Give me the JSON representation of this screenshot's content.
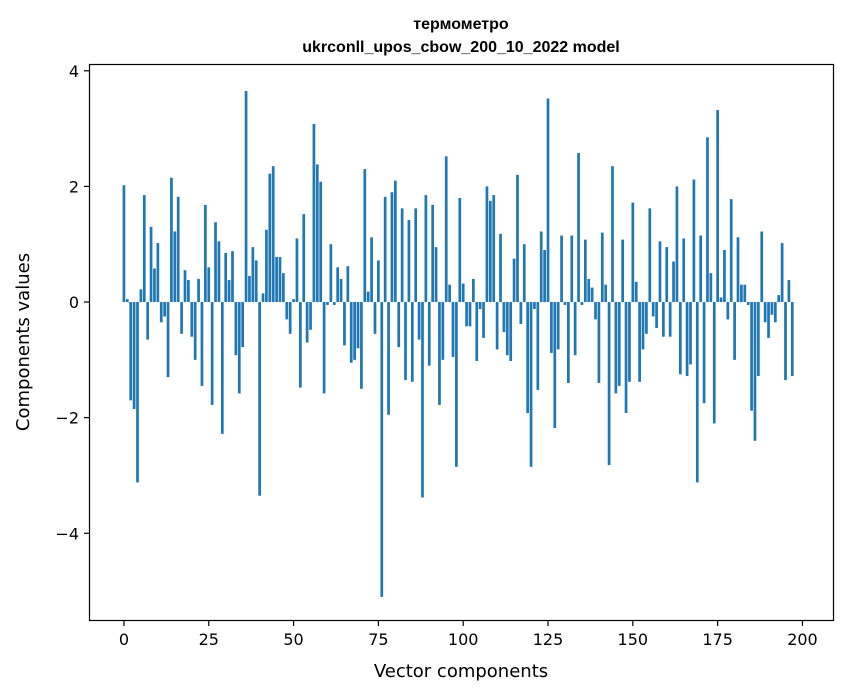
{
  "chart_data": {
    "type": "bar",
    "title": "термометро",
    "subtitle": "ukrconll_upos_cbow_200_10_2022 model",
    "xlabel": "Vector components",
    "ylabel": "Components values",
    "xlim": [
      -10,
      209
    ],
    "ylim": [
      -5.5,
      4.1
    ],
    "xticks": [
      0,
      25,
      50,
      75,
      100,
      125,
      150,
      175,
      200
    ],
    "yticks": [
      -4,
      -2,
      0,
      2,
      4
    ],
    "ytick_labels": [
      "−4",
      "−2",
      "0",
      "2",
      "4"
    ],
    "grid": false,
    "bar_color": "#1f77b4",
    "values": [
      2.02,
      0.05,
      -1.7,
      -1.85,
      -3.12,
      0.22,
      1.85,
      -0.65,
      1.3,
      0.58,
      1.02,
      -0.35,
      -0.25,
      -1.3,
      2.15,
      1.22,
      1.82,
      -0.55,
      0.55,
      0.38,
      -0.6,
      -1.0,
      0.4,
      -1.45,
      1.68,
      0.6,
      -1.78,
      1.38,
      1.05,
      -2.28,
      0.85,
      0.38,
      0.88,
      -0.92,
      -1.58,
      -0.78,
      3.65,
      0.45,
      0.95,
      0.72,
      -3.35,
      0.15,
      1.25,
      2.22,
      2.35,
      0.78,
      0.78,
      0.5,
      -0.3,
      -0.55,
      0.05,
      1.1,
      -1.48,
      1.52,
      -0.7,
      -0.48,
      3.08,
      2.38,
      2.08,
      -1.58,
      -0.05,
      1.0,
      -0.05,
      0.6,
      0.4,
      -0.75,
      0.62,
      -1.05,
      -1.0,
      -0.8,
      -1.5,
      2.3,
      0.18,
      1.12,
      -0.55,
      0.72,
      -5.1,
      1.82,
      -1.95,
      1.9,
      2.1,
      -0.78,
      1.62,
      -1.35,
      1.42,
      -1.38,
      1.62,
      -0.65,
      -3.38,
      1.85,
      -1.1,
      1.68,
      0.95,
      -1.78,
      -1.0,
      2.52,
      0.3,
      -0.95,
      -2.85,
      1.8,
      0.32,
      -0.42,
      -0.42,
      0.4,
      -1.02,
      -0.12,
      -0.62,
      2.0,
      1.75,
      1.85,
      -0.82,
      1.18,
      -0.52,
      -0.92,
      -1.02,
      0.75,
      2.2,
      -0.38,
      1.0,
      -1.92,
      -2.85,
      -0.12,
      -1.52,
      1.22,
      0.9,
      3.52,
      -0.88,
      -2.18,
      -0.82,
      1.15,
      -0.05,
      -1.4,
      1.15,
      -0.92,
      2.58,
      -0.05,
      1.08,
      0.4,
      0.25,
      -0.3,
      -1.4,
      1.2,
      0.3,
      -2.82,
      2.35,
      -1.58,
      -1.45,
      1.08,
      -1.92,
      -1.38,
      1.72,
      0.35,
      -1.38,
      -0.82,
      -0.55,
      1.62,
      -0.25,
      -0.45,
      1.05,
      -0.6,
      0.95,
      -0.6,
      0.7,
      2.0,
      -1.25,
      1.1,
      -1.28,
      -1.08,
      2.12,
      -3.12,
      1.15,
      -1.75,
      2.85,
      0.5,
      -2.1,
      3.32,
      0.08,
      0.9,
      -0.3,
      1.78,
      -1.0,
      1.12,
      0.3,
      0.3,
      -0.05,
      -1.88,
      -2.4,
      -1.28,
      1.22,
      -0.35,
      -0.62,
      -0.22,
      -0.35,
      0.12,
      1.02,
      -1.35,
      0.38,
      -1.28
    ]
  }
}
